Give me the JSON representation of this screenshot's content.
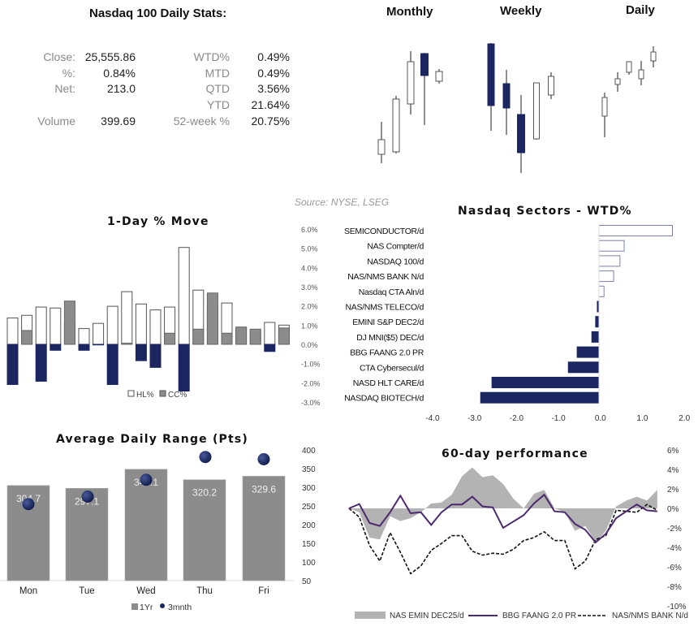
{
  "stats": {
    "title": "Nasdaq 100 Daily Stats:",
    "left": [
      {
        "label": "Close:",
        "value": "25,555.86"
      },
      {
        "label": "%:",
        "value": "0.84%"
      },
      {
        "label": "Net:",
        "value": "213.0"
      },
      {
        "label": "",
        "value": ""
      },
      {
        "label": "Volume",
        "value": "399.69"
      }
    ],
    "right": [
      {
        "label": "WTD%",
        "value": "0.49%"
      },
      {
        "label": "MTD",
        "value": "0.49%"
      },
      {
        "label": "QTD",
        "value": "3.56%"
      },
      {
        "label": "YTD",
        "value": "21.64%"
      },
      {
        "label": "52-week %",
        "value": "20.75%"
      }
    ]
  },
  "source": "Source: NYSE, LSEG",
  "colors": {
    "navy": "#1b2660",
    "gray": "#8c8c8c",
    "purple": "#4b2a6e",
    "area": "#b3b3b3"
  },
  "chart_data": [
    {
      "type": "candlestick",
      "title": "Monthly",
      "note": "relative price levels, no axis shown",
      "candles": [
        {
          "open": 40,
          "high": 80,
          "low": 29,
          "close": 58
        },
        {
          "open": 43,
          "high": 112,
          "low": 41,
          "close": 108
        },
        {
          "open": 102,
          "high": 167,
          "low": 89,
          "close": 154
        },
        {
          "open": 164,
          "high": 165,
          "low": 76,
          "close": 137
        },
        {
          "open": 130,
          "high": 145,
          "low": 127,
          "close": 142
        }
      ]
    },
    {
      "type": "candlestick",
      "title": "Weekly",
      "candles": [
        {
          "open": 176,
          "high": 177,
          "low": 69,
          "close": 100
        },
        {
          "open": 127,
          "high": 144,
          "low": 64,
          "close": 97
        },
        {
          "open": 89,
          "high": 113,
          "low": 17,
          "close": 42
        },
        {
          "open": 59,
          "high": 128,
          "low": 58,
          "close": 128
        },
        {
          "open": 113,
          "high": 141,
          "low": 108,
          "close": 136
        }
      ]
    },
    {
      "type": "candlestick",
      "title": "Daily",
      "candles": [
        {
          "open": 87,
          "high": 116,
          "low": 61,
          "close": 110
        },
        {
          "open": 126,
          "high": 141,
          "low": 117,
          "close": 133
        },
        {
          "open": 141,
          "high": 154,
          "low": 138,
          "close": 154
        },
        {
          "open": 133,
          "high": 155,
          "low": 125,
          "close": 144
        },
        {
          "open": 155,
          "high": 173,
          "low": 147,
          "close": 166
        }
      ]
    },
    {
      "type": "bar",
      "title": "1-Day % Move",
      "ylim": [
        -3,
        6
      ],
      "yticks": [
        "6.0%",
        "5.0%",
        "4.0%",
        "3.0%",
        "2.0%",
        "1.0%",
        "0.0%",
        "-1.0%",
        "-2.0%",
        "-3.0%"
      ],
      "ytick_values": [
        6,
        5,
        4,
        3,
        2,
        1,
        0,
        -1,
        -2,
        -3
      ],
      "legend": [
        "HL%",
        "CC%"
      ],
      "series": [
        {
          "name": "HL%",
          "values": [
            1.37,
            1.51,
            1.94,
            1.89,
            1.16,
            0.82,
            1.09,
            1.98,
            2.74,
            2.1,
            1.79,
            1.94,
            5.04,
            2.82,
            1.95,
            2.15,
            0.88,
            0.71,
            1.14,
            1.0
          ]
        },
        {
          "name": "CC%",
          "values": [
            -2.09,
            0.72,
            -1.92,
            -0.31,
            2.25,
            -0.31,
            -0.03,
            -2.09,
            0.06,
            -0.85,
            -1.2,
            0.58,
            -2.43,
            0.79,
            2.67,
            0.58,
            0.9,
            0.79,
            -0.37,
            0.85
          ]
        }
      ]
    },
    {
      "type": "bar",
      "orientation": "horizontal",
      "title": "Nasdaq Sectors - WTD%",
      "xlim": [
        -4,
        2
      ],
      "xticks": [
        "-4.0",
        "-3.0",
        "-2.0",
        "-1.0",
        "0.0",
        "1.0",
        "2.0"
      ],
      "categories": [
        "SEMICONDUCTOR/d",
        "NAS Compter/d",
        "NASDAQ 100/d",
        "NAS/NMS BANK N/d",
        "Nasdaq CTA Aln/d",
        "NAS/NMS TELECO/d",
        "EMINI S&P DEC2/d",
        "DJ MNI($5) DEC/d",
        "BBG FAANG 2.0 PR",
        "CTA Cybersecul/d",
        "NASD HLT CARE/d",
        "NASDAQ BIOTECH/d"
      ],
      "values": [
        1.75,
        0.6,
        0.5,
        0.35,
        0.12,
        -0.04,
        -0.08,
        -0.17,
        -0.52,
        -0.73,
        -2.55,
        -2.82
      ]
    },
    {
      "type": "bar",
      "title": "Average Daily Range (Pts)",
      "categories": [
        "Mon",
        "Tue",
        "Wed",
        "Thu",
        "Fri"
      ],
      "ylim": [
        50,
        400
      ],
      "yticks": [
        "400",
        "350",
        "300",
        "250",
        "200",
        "150",
        "100",
        "50"
      ],
      "ytick_values": [
        400,
        350,
        300,
        250,
        200,
        150,
        100,
        50
      ],
      "legend": [
        "1Yr",
        "3mnth"
      ],
      "series": [
        {
          "name": "1Yr",
          "values": [
            304.7,
            297.1,
            348.1,
            320.2,
            329.6
          ],
          "labels": [
            "304.7",
            "297.1",
            "348.1",
            "320.2",
            "329.6"
          ]
        },
        {
          "name": "3mnth",
          "type": "scatter",
          "values": [
            255,
            275,
            320,
            381,
            375
          ]
        }
      ]
    },
    {
      "type": "line",
      "title": "60-day performance",
      "ylim": [
        -10,
        6
      ],
      "yticks": [
        "6%",
        "4%",
        "2%",
        "0%",
        "-2%",
        "-4%",
        "-6%",
        "-8%",
        "-10%"
      ],
      "ytick_values": [
        6,
        4,
        2,
        0,
        -2,
        -4,
        -6,
        -8,
        -10
      ],
      "x": [
        0,
        2,
        4,
        6,
        8,
        10,
        12,
        14,
        16,
        18,
        20,
        22,
        24,
        26,
        28,
        30,
        32,
        34,
        36,
        38,
        40,
        42,
        44,
        46,
        48,
        50,
        52,
        54,
        56,
        58,
        60
      ],
      "series": [
        {
          "name": "NAS EMIN DEC25/d",
          "style": "area",
          "values": [
            0,
            -0.4,
            -3.0,
            -3.2,
            -0.8,
            -1.3,
            -1.0,
            -0.4,
            0.5,
            0.6,
            1.4,
            3.3,
            4.2,
            3.2,
            3.4,
            2.5,
            1.0,
            0,
            1.5,
            1.9,
            0,
            -0.4,
            -2.3,
            -1.8,
            -3.5,
            -2.3,
            0.2,
            0.8,
            1.2,
            0.8,
            1.9
          ]
        },
        {
          "name": "BBG FAANG 2.0 PR",
          "style": "solid",
          "values": [
            0,
            0.45,
            -1.5,
            -1.8,
            -0.4,
            1.3,
            -0.5,
            -0.4,
            -1.7,
            -0.4,
            0.4,
            0.4,
            1.2,
            0.2,
            0.1,
            -2.0,
            -1.35,
            -0.7,
            0.5,
            1.4,
            -0.3,
            -0.4,
            -1.6,
            -2.2,
            -3.5,
            -2.6,
            -1.0,
            -0.3,
            0.4,
            -0.2,
            -0.3
          ]
        },
        {
          "name": "NAS/NMS BANK N/d",
          "style": "dashed",
          "values": [
            0,
            -0.9,
            -3.8,
            -5.4,
            -2.5,
            -4.5,
            -6.7,
            -5.9,
            -4.3,
            -3.6,
            -2.8,
            -2.8,
            -4.4,
            -4.8,
            -4.6,
            -4.7,
            -4.2,
            -3.3,
            -3.0,
            -2.4,
            -3.3,
            -3.3,
            -6.2,
            -5.4,
            -3.2,
            -2.8,
            -0.2,
            -0.3,
            -0.4,
            0.4,
            -0.2
          ]
        }
      ]
    }
  ]
}
